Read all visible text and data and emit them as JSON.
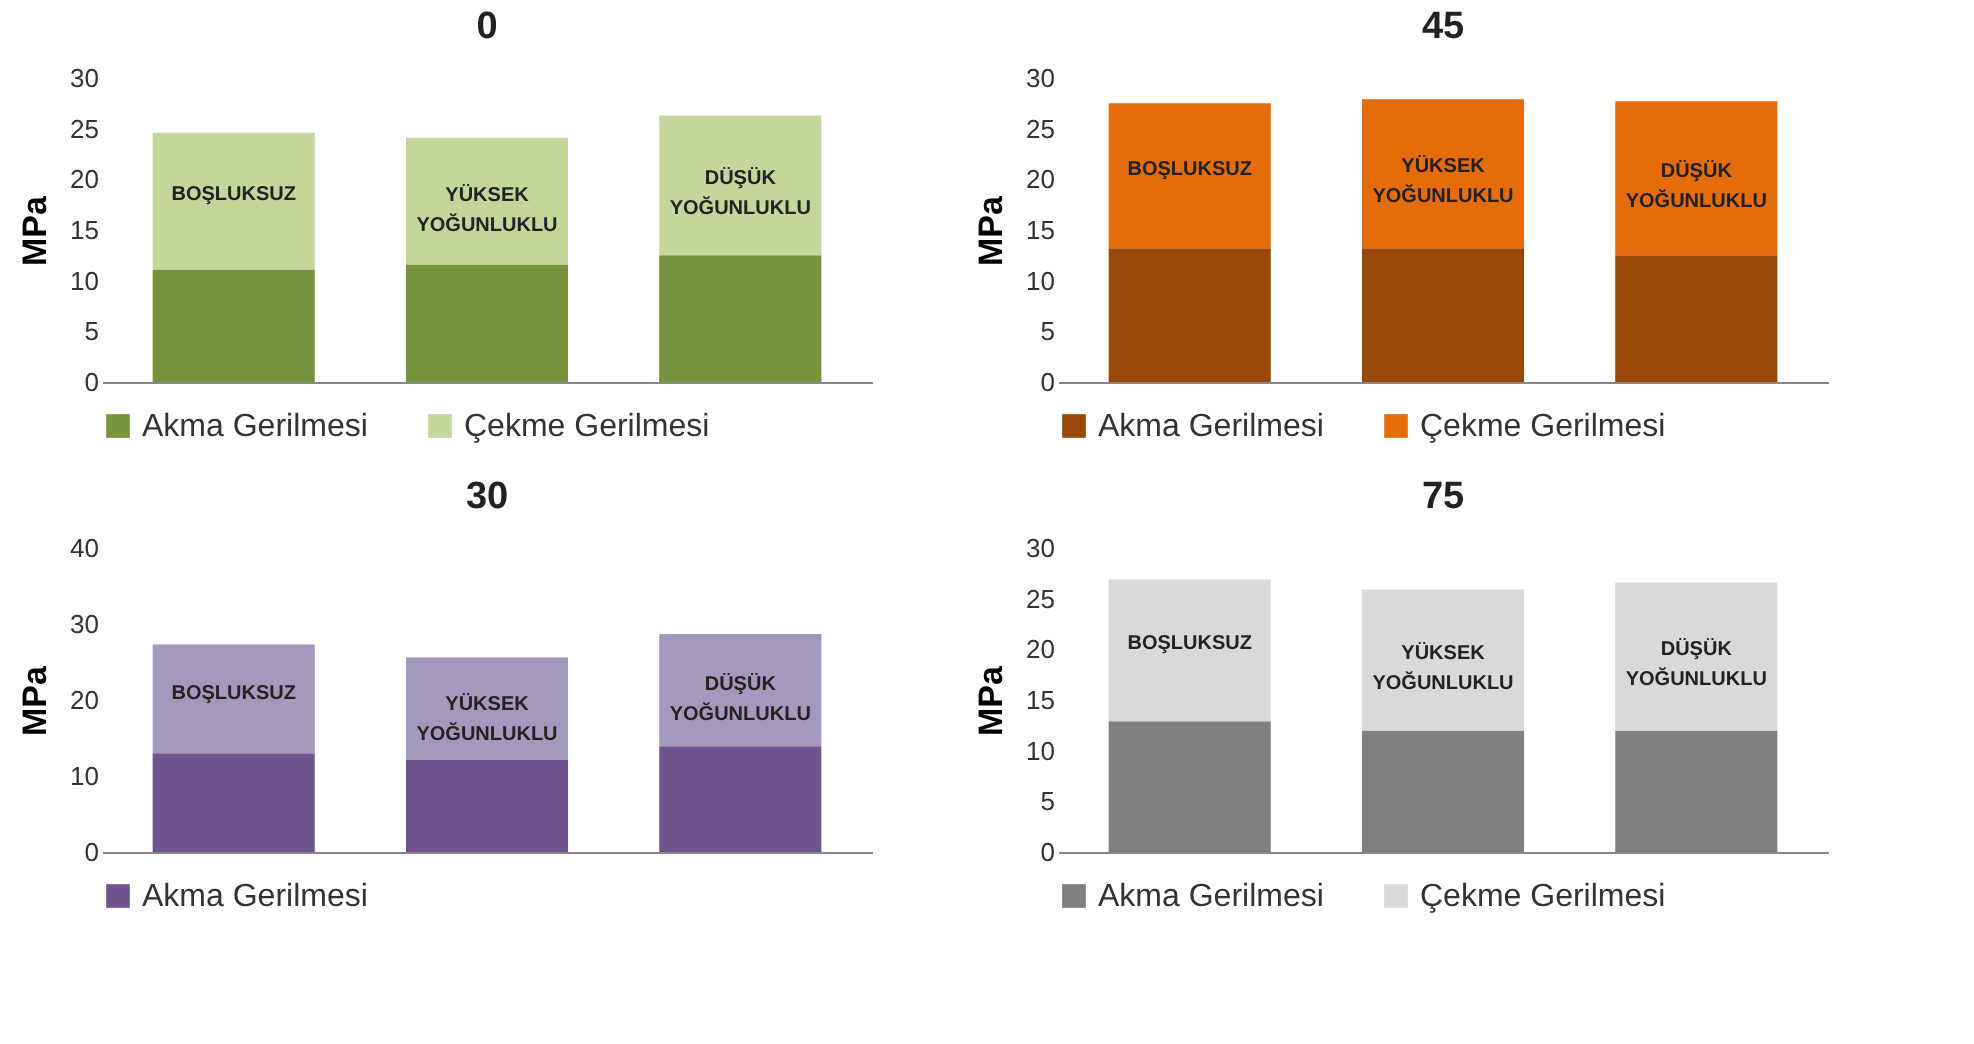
{
  "chart_data": [
    {
      "type": "bar",
      "title": "0",
      "ylabel": "MPa",
      "categories": [
        "BOŞLUKSUZ",
        "YÜKSEK YOĞUNLUKLU",
        "DÜŞÜK YOĞUNLUKLU"
      ],
      "stacked": true,
      "ylim": [
        0,
        30
      ],
      "yticks": [
        0,
        5,
        10,
        15,
        20,
        25,
        30
      ],
      "tick_labels": "y",
      "legend": "bottom",
      "series": [
        {
          "name": "Akma Gerilmesi",
          "color": "#77933c",
          "values": [
            11.1,
            11.6,
            12.5
          ]
        },
        {
          "name": "Çekme Gerilmesi",
          "color": "#c3d69b",
          "values": [
            13.5,
            12.5,
            13.8
          ]
        }
      ]
    },
    {
      "type": "bar",
      "title": "45",
      "ylabel": "MPa",
      "categories": [
        "BOŞLUKSUZ",
        "YÜKSEK YOĞUNLUKLU",
        "DÜŞÜK YOĞUNLUKLU"
      ],
      "stacked": true,
      "ylim": [
        0,
        30
      ],
      "yticks": [
        0,
        5,
        10,
        15,
        20,
        25,
        30
      ],
      "tick_labels": "y",
      "legend": "bottom",
      "series": [
        {
          "name": "Akma Gerilmesi",
          "color": "#984807",
          "values": [
            13.2,
            13.2,
            12.5
          ]
        },
        {
          "name": "Çekme Gerilmesi",
          "color": "#e46c0a",
          "values": [
            14.3,
            14.7,
            15.2
          ]
        }
      ]
    },
    {
      "type": "bar",
      "title": "30",
      "ylabel": "MPa",
      "categories": [
        "BOŞLUKSUZ",
        "YÜKSEK YOĞUNLUKLU",
        "DÜŞÜK YOĞUNLUKLU"
      ],
      "stacked": true,
      "ylim": [
        0,
        40
      ],
      "yticks": [
        0,
        10,
        20,
        30,
        40
      ],
      "tick_labels": "y",
      "legend": "bottom",
      "series": [
        {
          "name": "Akma Gerilmesi",
          "color": "#6f5590",
          "values": [
            13.0,
            12.1,
            13.9
          ]
        },
        {
          "color": "#a598bd",
          "values": [
            14.3,
            13.5,
            14.8
          ]
        }
      ]
    },
    {
      "type": "bar",
      "title": "75",
      "ylabel": "MPa",
      "categories": [
        "BOŞLUKSUZ",
        "YÜKSEK YOĞUNLUKLU",
        "DÜŞÜK YOĞUNLUKLU"
      ],
      "stacked": true,
      "ylim": [
        0,
        30
      ],
      "yticks": [
        0,
        5,
        10,
        15,
        20,
        25,
        30
      ],
      "tick_labels": "y",
      "legend": "bottom",
      "series": [
        {
          "name": "Akma Gerilmesi",
          "color": "#7f7f7f",
          "values": [
            12.9,
            12.0,
            12.0
          ]
        },
        {
          "name": "Çekme Gerilmesi",
          "color": "#d9d9d9",
          "values": [
            14.0,
            13.9,
            14.6
          ]
        }
      ]
    }
  ]
}
